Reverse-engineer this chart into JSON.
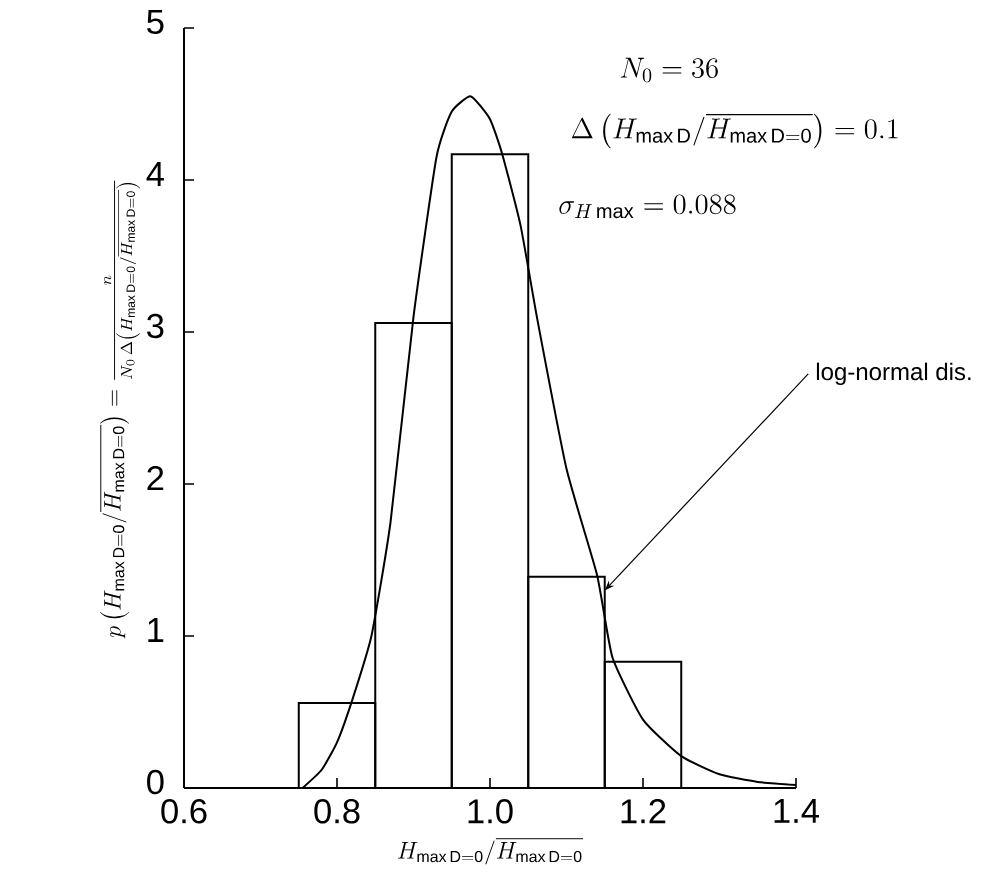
{
  "chart_data": {
    "type": "histogram",
    "xlabel": "H_{\\mathrm{max\\,D=0}}/\\overline{H_{\\mathrm{max\\,D=0}}}",
    "ylabel": "p\\left(H_{\\mathrm{max\\,D=0}}/\\overline{H_{\\mathrm{max\\,D=0}}}\\right)=\\frac{n}{N_0\\,\\Delta\\left(H_{\\mathrm{max\\,D=0}}/\\overline{H_{\\mathrm{max\\,D=0}}}\\right)}",
    "bins": [
      0.75,
      0.85,
      0.95,
      1.05,
      1.15,
      1.25
    ],
    "values": [
      0.56,
      3.06,
      4.17,
      1.39,
      0.83
    ],
    "color": "#000000",
    "series": [
      {
        "type": "line",
        "color": "#000000",
        "x": [
          0.755,
          0.78,
          0.8,
          0.82,
          0.845,
          0.87,
          0.9,
          0.93,
          0.95,
          0.975,
          1.0,
          1.016,
          1.04,
          1.062,
          1.1,
          1.14,
          1.16,
          1.2,
          1.25,
          1.3,
          1.35,
          1.4
        ],
        "values": [
          0,
          0.12,
          0.3,
          0.58,
          1.0,
          1.75,
          3.1,
          4.15,
          4.45,
          4.55,
          4.4,
          4.17,
          3.7,
          3.08,
          2.1,
          1.4,
          0.86,
          0.45,
          0.21,
          0.09,
          0.04,
          0.02
        ]
      }
    ],
    "annotations": [
      "N_0=36",
      "\\Delta\\left(H_{\\mathrm{max\\,D}}/\\overline{H_{\\mathrm{max\\,D=0}}}\\right)=0.1",
      "\\sigma_{H\\,\\mathrm{max}}=0.088",
      {
        "text": "log-normal dis.",
        "x": 1.15,
        "y": 1.3
      }
    ],
    "xlim": [
      0.6,
      1.4
    ],
    "ylim": [
      0,
      5
    ],
    "xticks": [
      0.6,
      0.8,
      {
        "value": 1,
        "label": "1.0"
      },
      1.2,
      1.4
    ],
    "yticks": [
      0,
      1,
      2,
      3,
      4,
      5
    ]
  }
}
